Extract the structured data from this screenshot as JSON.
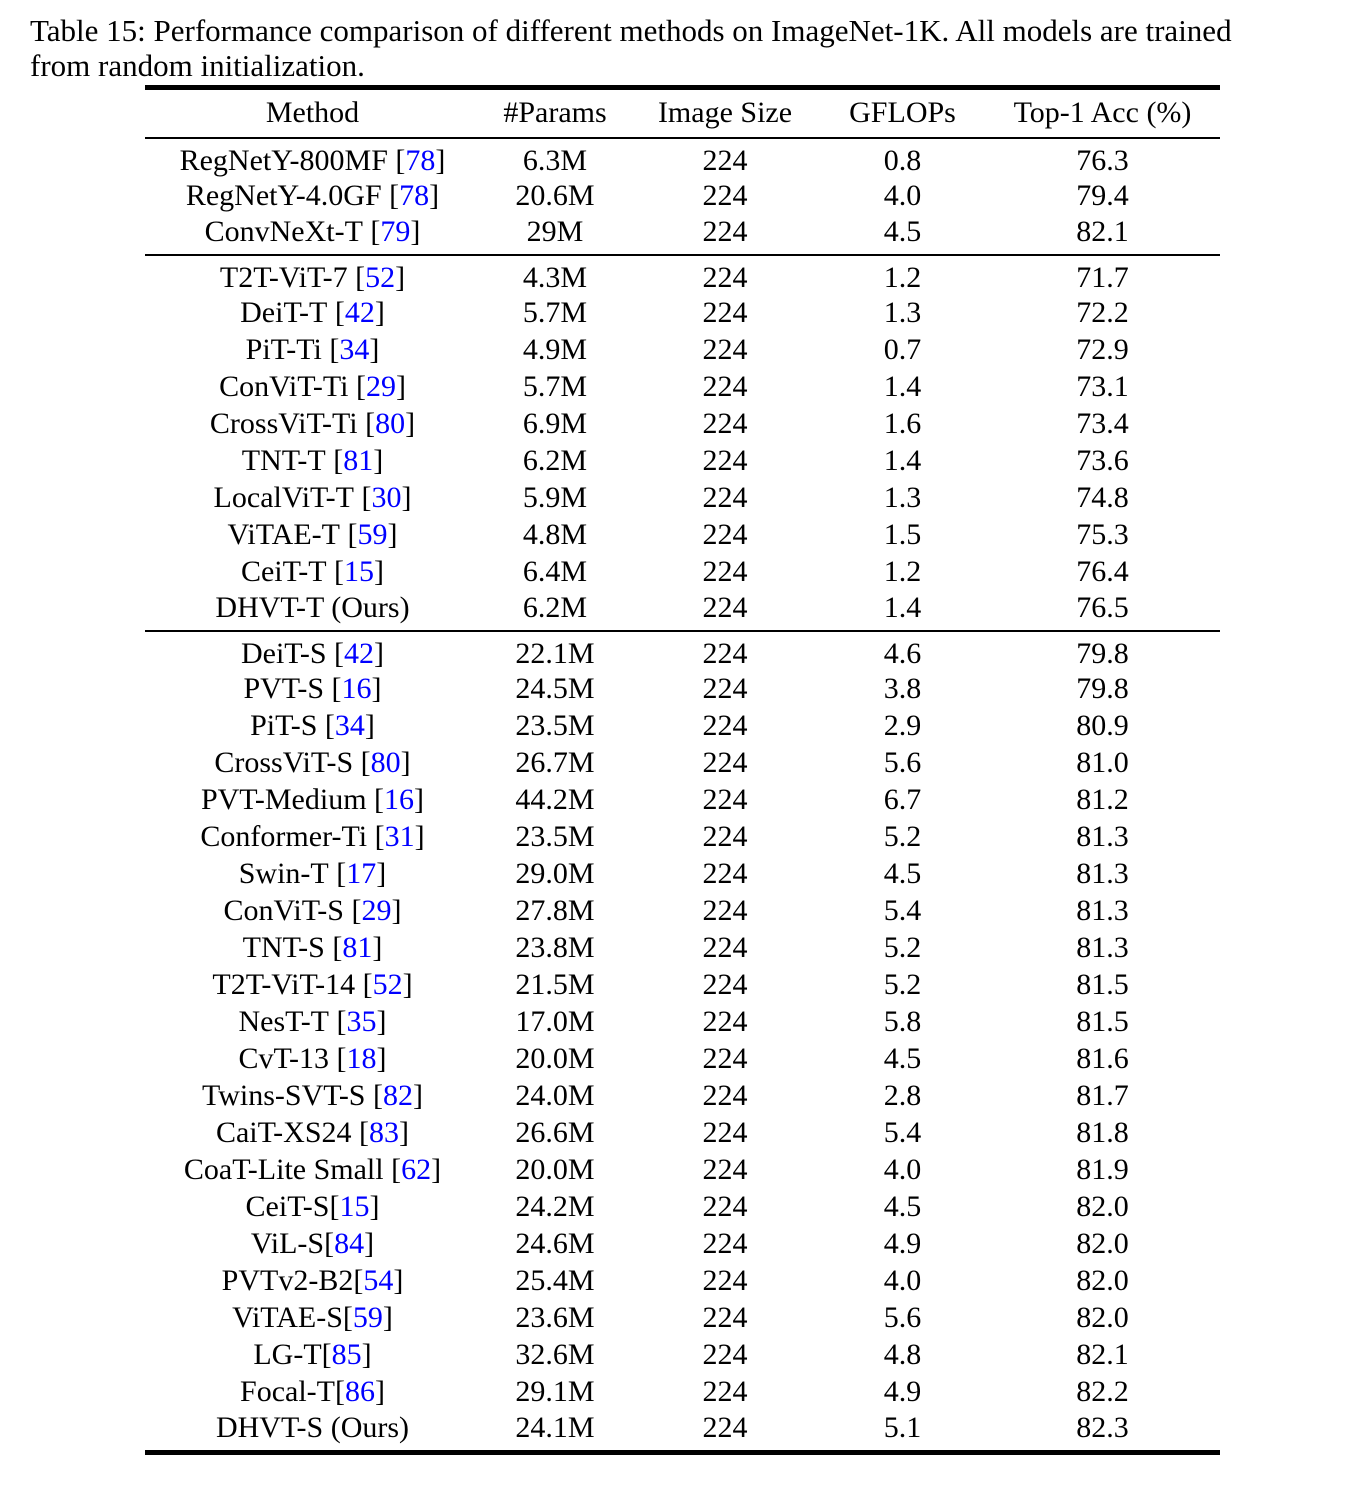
{
  "caption": {
    "line1": "Table 15: Performance comparison of different methods on ImageNet-1K. All models are trained",
    "line2": "from random initialization."
  },
  "colors": {
    "citation": "#0000FF",
    "text": "#000000"
  },
  "table": {
    "headers": [
      "Method",
      "#Params",
      "Image Size",
      "GFLOPs",
      "Top-1 Acc (%)"
    ],
    "sections": [
      {
        "rows": [
          {
            "method": "RegNetY-800MF",
            "cite": "78",
            "space": true,
            "params": "6.3M",
            "size": "224",
            "gflops": "0.8",
            "acc": "76.3",
            "bold": false
          },
          {
            "method": "RegNetY-4.0GF",
            "cite": "78",
            "space": true,
            "params": "20.6M",
            "size": "224",
            "gflops": "4.0",
            "acc": "79.4",
            "bold": false
          },
          {
            "method": "ConvNeXt-T",
            "cite": "79",
            "space": true,
            "params": "29M",
            "size": "224",
            "gflops": "4.5",
            "acc": "82.1",
            "bold": false
          }
        ]
      },
      {
        "rows": [
          {
            "method": "T2T-ViT-7",
            "cite": "52",
            "space": true,
            "params": "4.3M",
            "size": "224",
            "gflops": "1.2",
            "acc": "71.7",
            "bold": false
          },
          {
            "method": "DeiT-T",
            "cite": "42",
            "space": true,
            "params": "5.7M",
            "size": "224",
            "gflops": "1.3",
            "acc": "72.2",
            "bold": false
          },
          {
            "method": "PiT-Ti",
            "cite": "34",
            "space": true,
            "params": "4.9M",
            "size": "224",
            "gflops": "0.7",
            "acc": "72.9",
            "bold": false
          },
          {
            "method": "ConViT-Ti",
            "cite": "29",
            "space": true,
            "params": "5.7M",
            "size": "224",
            "gflops": "1.4",
            "acc": "73.1",
            "bold": false
          },
          {
            "method": "CrossViT-Ti",
            "cite": "80",
            "space": true,
            "params": "6.9M",
            "size": "224",
            "gflops": "1.6",
            "acc": "73.4",
            "bold": false
          },
          {
            "method": "TNT-T",
            "cite": "81",
            "space": true,
            "params": "6.2M",
            "size": "224",
            "gflops": "1.4",
            "acc": "73.6",
            "bold": false
          },
          {
            "method": "LocalViT-T",
            "cite": "30",
            "space": true,
            "params": "5.9M",
            "size": "224",
            "gflops": "1.3",
            "acc": "74.8",
            "bold": false
          },
          {
            "method": "ViTAE-T",
            "cite": "59",
            "space": true,
            "params": "4.8M",
            "size": "224",
            "gflops": "1.5",
            "acc": "75.3",
            "bold": false
          },
          {
            "method": "CeiT-T",
            "cite": "15",
            "space": true,
            "params": "6.4M",
            "size": "224",
            "gflops": "1.2",
            "acc": "76.4",
            "bold": false
          },
          {
            "method": "DHVT-T (Ours)",
            "cite": null,
            "space": false,
            "params": "6.2M",
            "size": "224",
            "gflops": "1.4",
            "acc": "76.5",
            "bold": true
          }
        ]
      },
      {
        "rows": [
          {
            "method": "DeiT-S",
            "cite": "42",
            "space": true,
            "params": "22.1M",
            "size": "224",
            "gflops": "4.6",
            "acc": "79.8",
            "bold": false
          },
          {
            "method": "PVT-S",
            "cite": "16",
            "space": true,
            "params": "24.5M",
            "size": "224",
            "gflops": "3.8",
            "acc": "79.8",
            "bold": false
          },
          {
            "method": "PiT-S",
            "cite": "34",
            "space": true,
            "params": "23.5M",
            "size": "224",
            "gflops": "2.9",
            "acc": "80.9",
            "bold": false
          },
          {
            "method": "CrossViT-S",
            "cite": "80",
            "space": true,
            "params": "26.7M",
            "size": "224",
            "gflops": "5.6",
            "acc": "81.0",
            "bold": false
          },
          {
            "method": "PVT-Medium",
            "cite": "16",
            "space": true,
            "params": "44.2M",
            "size": "224",
            "gflops": "6.7",
            "acc": "81.2",
            "bold": false
          },
          {
            "method": "Conformer-Ti",
            "cite": "31",
            "space": true,
            "params": "23.5M",
            "size": "224",
            "gflops": "5.2",
            "acc": "81.3",
            "bold": false
          },
          {
            "method": "Swin-T",
            "cite": "17",
            "space": true,
            "params": "29.0M",
            "size": "224",
            "gflops": "4.5",
            "acc": "81.3",
            "bold": false
          },
          {
            "method": "ConViT-S",
            "cite": "29",
            "space": true,
            "params": "27.8M",
            "size": "224",
            "gflops": "5.4",
            "acc": "81.3",
            "bold": false
          },
          {
            "method": "TNT-S",
            "cite": "81",
            "space": true,
            "params": "23.8M",
            "size": "224",
            "gflops": "5.2",
            "acc": "81.3",
            "bold": false
          },
          {
            "method": "T2T-ViT-14",
            "cite": "52",
            "space": true,
            "params": "21.5M",
            "size": "224",
            "gflops": "5.2",
            "acc": "81.5",
            "bold": false
          },
          {
            "method": "NesT-T",
            "cite": "35",
            "space": true,
            "params": "17.0M",
            "size": "224",
            "gflops": "5.8",
            "acc": "81.5",
            "bold": false
          },
          {
            "method": "CvT-13",
            "cite": "18",
            "space": true,
            "params": "20.0M",
            "size": "224",
            "gflops": "4.5",
            "acc": "81.6",
            "bold": false
          },
          {
            "method": "Twins-SVT-S",
            "cite": "82",
            "space": true,
            "params": "24.0M",
            "size": "224",
            "gflops": "2.8",
            "acc": "81.7",
            "bold": false
          },
          {
            "method": "CaiT-XS24",
            "cite": "83",
            "space": true,
            "params": "26.6M",
            "size": "224",
            "gflops": "5.4",
            "acc": "81.8",
            "bold": false
          },
          {
            "method": "CoaT-Lite Small",
            "cite": "62",
            "space": true,
            "params": "20.0M",
            "size": "224",
            "gflops": "4.0",
            "acc": "81.9",
            "bold": false
          },
          {
            "method": "CeiT-S",
            "cite": "15",
            "space": false,
            "params": "24.2M",
            "size": "224",
            "gflops": "4.5",
            "acc": "82.0",
            "bold": false
          },
          {
            "method": "ViL-S",
            "cite": "84",
            "space": false,
            "params": "24.6M",
            "size": "224",
            "gflops": "4.9",
            "acc": "82.0",
            "bold": false
          },
          {
            "method": "PVTv2-B2",
            "cite": "54",
            "space": false,
            "params": "25.4M",
            "size": "224",
            "gflops": "4.0",
            "acc": "82.0",
            "bold": false
          },
          {
            "method": "ViTAE-S",
            "cite": "59",
            "space": false,
            "params": "23.6M",
            "size": "224",
            "gflops": "5.6",
            "acc": "82.0",
            "bold": false
          },
          {
            "method": "LG-T",
            "cite": "85",
            "space": false,
            "params": "32.6M",
            "size": "224",
            "gflops": "4.8",
            "acc": "82.1",
            "bold": false
          },
          {
            "method": "Focal-T",
            "cite": "86",
            "space": false,
            "params": "29.1M",
            "size": "224",
            "gflops": "4.9",
            "acc": "82.2",
            "bold": false
          },
          {
            "method": "DHVT-S (Ours)",
            "cite": null,
            "space": false,
            "params": "24.1M",
            "size": "224",
            "gflops": "5.1",
            "acc": "82.3",
            "bold": true
          }
        ]
      }
    ]
  }
}
